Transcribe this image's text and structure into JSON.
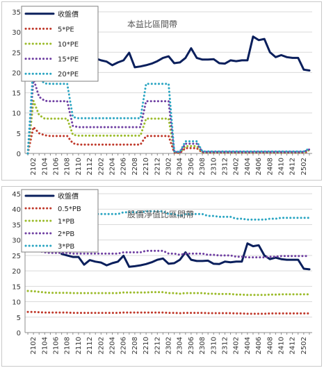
{
  "chart_data": [
    {
      "type": "line",
      "title": "本益比區間帶",
      "x": [
        "2101",
        "2102",
        "2103",
        "2104",
        "2105",
        "2106",
        "2107",
        "2108",
        "2109",
        "2110",
        "2111",
        "2112",
        "2201",
        "2202",
        "2203",
        "2204",
        "2205",
        "2206",
        "2207",
        "2208",
        "2209",
        "2210",
        "2211",
        "2212",
        "2301",
        "2302",
        "2303",
        "2304",
        "2305",
        "2306",
        "2307",
        "2308",
        "2309",
        "2310",
        "2311",
        "2312",
        "2401",
        "2402",
        "2403",
        "2404",
        "2405",
        "2406",
        "2407",
        "2408",
        "2409",
        "2410",
        "2411",
        "2412",
        "2501",
        "2502",
        "2503"
      ],
      "xticks": [
        "2102",
        "2104",
        "2106",
        "2108",
        "2110",
        "2112",
        "2202",
        "2204",
        "2206",
        "2208",
        "2210",
        "2212",
        "2302",
        "2304",
        "2306",
        "2308",
        "2310",
        "2312",
        "2402",
        "2404",
        "2406",
        "2408",
        "2410",
        "2412",
        "2502"
      ],
      "ylim": [
        0,
        35
      ],
      "yticks": [
        0,
        5,
        10,
        15,
        20,
        25,
        30,
        35
      ],
      "grid": true,
      "legend_position": "top-left",
      "series": [
        {
          "name": "收盤價",
          "color": "#0a1f5c",
          "style": "solid",
          "values": [
            null,
            null,
            null,
            null,
            null,
            null,
            null,
            null,
            null,
            null,
            23.5,
            22.0,
            23.5,
            23.0,
            22.7,
            21.8,
            22.5,
            23.0,
            24.9,
            21.3,
            21.5,
            21.8,
            22.2,
            22.8,
            23.6,
            24.0,
            22.3,
            22.5,
            23.6,
            26.0,
            23.6,
            23.2,
            23.2,
            23.3,
            22.3,
            22.2,
            23.0,
            22.8,
            23.0,
            23.0,
            28.9,
            28.0,
            28.3,
            25.0,
            23.8,
            24.3,
            23.8,
            23.6,
            23.6,
            20.7,
            20.5
          ]
        },
        {
          "name": "5*PE",
          "color": "#c0392b",
          "style": "dotted",
          "values": [
            0.0,
            6.5,
            5.0,
            4.5,
            4.3,
            4.3,
            4.3,
            4.3,
            2.5,
            2.2,
            2.2,
            2.2,
            2.2,
            2.2,
            2.2,
            2.2,
            2.2,
            2.2,
            2.2,
            2.2,
            2.2,
            4.3,
            4.3,
            4.3,
            4.3,
            4.3,
            0.2,
            0.1,
            1.3,
            1.3,
            1.3,
            0.2,
            0.2,
            0.2,
            0.2,
            0.2,
            0.2,
            0.2,
            0.2,
            0.2,
            0.2,
            0.2,
            0.2,
            0.2,
            0.2,
            0.2,
            0.2,
            0.2,
            0.2,
            0.2,
            0.5
          ]
        },
        {
          "name": "10*PE",
          "color": "#9bbb2a",
          "style": "dotted",
          "values": [
            0.0,
            13.0,
            9.5,
            8.6,
            8.6,
            8.6,
            8.6,
            8.6,
            4.6,
            4.4,
            4.4,
            4.4,
            4.4,
            4.4,
            4.4,
            4.4,
            4.4,
            4.4,
            4.4,
            4.4,
            4.4,
            8.6,
            8.6,
            8.6,
            8.6,
            8.6,
            0.3,
            0.2,
            1.8,
            1.8,
            1.8,
            0.3,
            0.3,
            0.3,
            0.3,
            0.3,
            0.3,
            0.3,
            0.3,
            0.3,
            0.3,
            0.3,
            0.3,
            0.3,
            0.3,
            0.3,
            0.3,
            0.3,
            0.3,
            0.3,
            0.8
          ]
        },
        {
          "name": "15*PE",
          "color": "#6f3fa2",
          "style": "dotted",
          "values": [
            0.0,
            18.5,
            14.0,
            13.0,
            12.9,
            12.9,
            12.9,
            12.9,
            6.8,
            6.5,
            6.5,
            6.5,
            6.5,
            6.5,
            6.5,
            6.5,
            6.5,
            6.5,
            6.5,
            6.5,
            6.5,
            12.9,
            12.9,
            12.9,
            12.9,
            12.9,
            0.4,
            0.3,
            2.4,
            2.4,
            2.4,
            0.4,
            0.4,
            0.4,
            0.4,
            0.4,
            0.4,
            0.4,
            0.4,
            0.4,
            0.4,
            0.4,
            0.4,
            0.4,
            0.4,
            0.4,
            0.4,
            0.4,
            0.4,
            0.4,
            1.0
          ]
        },
        {
          "name": "20*PE",
          "color": "#2aa5c2",
          "style": "dotted",
          "values": [
            0.0,
            22.0,
            18.5,
            17.3,
            17.2,
            17.2,
            17.2,
            17.2,
            9.0,
            8.7,
            8.7,
            8.7,
            8.7,
            8.7,
            8.7,
            8.7,
            8.7,
            8.7,
            8.7,
            8.7,
            8.7,
            17.2,
            17.2,
            17.2,
            17.2,
            17.2,
            0.5,
            0.4,
            3.0,
            3.0,
            3.0,
            0.5,
            0.5,
            0.5,
            0.5,
            0.5,
            0.5,
            0.5,
            0.5,
            0.5,
            0.5,
            0.5,
            0.5,
            0.5,
            0.5,
            0.5,
            0.5,
            0.5,
            0.5,
            0.5,
            1.2
          ]
        }
      ]
    },
    {
      "type": "line",
      "title": "股價淨值比區間帶",
      "x": [
        "2101",
        "2102",
        "2103",
        "2104",
        "2105",
        "2106",
        "2107",
        "2108",
        "2109",
        "2110",
        "2111",
        "2112",
        "2201",
        "2202",
        "2203",
        "2204",
        "2205",
        "2206",
        "2207",
        "2208",
        "2209",
        "2210",
        "2211",
        "2212",
        "2301",
        "2302",
        "2303",
        "2304",
        "2305",
        "2306",
        "2307",
        "2308",
        "2309",
        "2310",
        "2311",
        "2312",
        "2401",
        "2402",
        "2403",
        "2404",
        "2405",
        "2406",
        "2407",
        "2408",
        "2409",
        "2410",
        "2411",
        "2412",
        "2501",
        "2502",
        "2503"
      ],
      "xticks": [
        "2102",
        "2104",
        "2106",
        "2108",
        "2110",
        "2112",
        "2202",
        "2204",
        "2206",
        "2208",
        "2210",
        "2212",
        "2302",
        "2304",
        "2306",
        "2308",
        "2310",
        "2312",
        "2402",
        "2404",
        "2406",
        "2408",
        "2410",
        "2412",
        "2502"
      ],
      "ylim": [
        0,
        45
      ],
      "yticks": [
        0,
        5,
        10,
        15,
        20,
        25,
        30,
        35,
        40,
        45
      ],
      "grid": true,
      "legend_position": "top-left",
      "series": [
        {
          "name": "收盤價",
          "color": "#0a1f5c",
          "style": "solid",
          "values": [
            null,
            null,
            null,
            null,
            null,
            null,
            25.5,
            25.0,
            24.5,
            24.5,
            22.0,
            23.5,
            23.0,
            22.7,
            21.8,
            22.5,
            23.0,
            24.9,
            21.3,
            21.5,
            21.8,
            22.2,
            22.8,
            23.6,
            24.0,
            22.3,
            22.5,
            23.6,
            26.0,
            23.6,
            23.2,
            23.2,
            23.3,
            22.3,
            22.2,
            23.0,
            22.8,
            23.0,
            23.0,
            28.9,
            28.0,
            28.3,
            25.0,
            23.8,
            24.3,
            23.8,
            23.6,
            23.6,
            23.6,
            20.7,
            20.5
          ]
        },
        {
          "name": "0.5*PB",
          "color": "#c0392b",
          "style": "dotted",
          "values": [
            6.7,
            6.7,
            6.6,
            6.5,
            6.5,
            6.5,
            6.5,
            6.5,
            6.4,
            6.4,
            6.4,
            6.4,
            6.4,
            6.4,
            6.4,
            6.4,
            6.4,
            6.5,
            6.5,
            6.5,
            6.5,
            6.5,
            6.5,
            6.5,
            6.5,
            6.4,
            6.4,
            6.3,
            6.4,
            6.4,
            6.4,
            6.4,
            6.3,
            6.3,
            6.3,
            6.3,
            6.3,
            6.2,
            6.2,
            6.1,
            6.1,
            6.1,
            6.1,
            6.2,
            6.2,
            6.2,
            6.2,
            6.2,
            6.2,
            6.2,
            6.2
          ]
        },
        {
          "name": "1*PB",
          "color": "#9bbb2a",
          "style": "dotted",
          "values": [
            13.5,
            13.4,
            13.2,
            13.0,
            12.9,
            12.9,
            12.9,
            12.9,
            12.8,
            12.8,
            12.8,
            12.8,
            12.8,
            12.8,
            12.8,
            12.8,
            12.8,
            13.0,
            13.0,
            13.0,
            13.0,
            13.0,
            13.1,
            13.1,
            13.1,
            12.8,
            12.8,
            12.6,
            12.8,
            12.8,
            12.8,
            12.8,
            12.6,
            12.6,
            12.5,
            12.5,
            12.5,
            12.3,
            12.3,
            12.2,
            12.2,
            12.2,
            12.2,
            12.3,
            12.3,
            12.4,
            12.4,
            12.4,
            12.4,
            12.4,
            12.4
          ]
        },
        {
          "name": "2*PB",
          "color": "#6f3fa2",
          "style": "dotted",
          "values": [
            27.0,
            26.8,
            26.4,
            26.0,
            25.8,
            25.8,
            25.8,
            25.8,
            25.6,
            25.6,
            25.6,
            25.6,
            25.6,
            25.6,
            25.6,
            25.6,
            25.6,
            26.0,
            26.0,
            26.0,
            26.0,
            26.5,
            26.5,
            26.5,
            26.5,
            25.6,
            25.6,
            25.2,
            25.6,
            25.6,
            25.6,
            25.6,
            25.2,
            25.2,
            25.0,
            25.0,
            25.0,
            24.6,
            24.6,
            24.4,
            24.4,
            24.4,
            24.4,
            24.6,
            24.6,
            24.8,
            24.8,
            24.8,
            24.8,
            24.8,
            24.8
          ]
        },
        {
          "name": "3*PB",
          "color": "#2aa5c2",
          "style": "dotted",
          "values": [
            40.5,
            40.2,
            39.6,
            39.0,
            38.7,
            38.7,
            38.7,
            38.7,
            38.4,
            38.4,
            38.4,
            38.4,
            38.4,
            38.4,
            38.4,
            38.4,
            38.4,
            39.0,
            39.0,
            39.0,
            39.0,
            39.3,
            39.3,
            39.3,
            39.3,
            38.4,
            38.4,
            37.8,
            38.4,
            38.4,
            38.4,
            38.4,
            37.8,
            37.8,
            37.5,
            37.5,
            37.5,
            36.9,
            36.9,
            36.6,
            36.6,
            36.6,
            36.6,
            36.9,
            36.9,
            37.2,
            37.2,
            37.2,
            37.2,
            37.2,
            37.2
          ]
        }
      ]
    }
  ]
}
